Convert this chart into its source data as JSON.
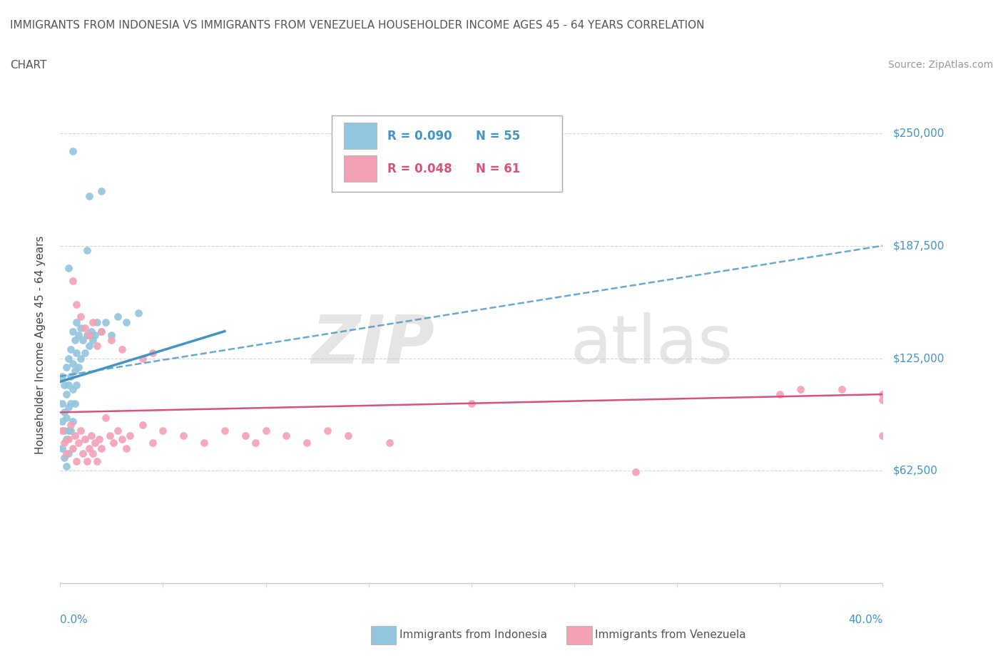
{
  "title_line1": "IMMIGRANTS FROM INDONESIA VS IMMIGRANTS FROM VENEZUELA HOUSEHOLDER INCOME AGES 45 - 64 YEARS CORRELATION",
  "title_line2": "CHART",
  "source": "Source: ZipAtlas.com",
  "ylabel": "Householder Income Ages 45 - 64 years",
  "xlim": [
    0.0,
    0.4
  ],
  "ylim": [
    0,
    265000
  ],
  "ytick_vals": [
    62500,
    125000,
    187500,
    250000
  ],
  "ytick_labels": [
    "$62,500",
    "$125,000",
    "$187,500",
    "$250,000"
  ],
  "color_indonesia": "#92c5de",
  "color_venezuela": "#f4a0b5",
  "color_indonesia_line": "#4393c3",
  "color_venezuela_line": "#d6537a",
  "color_axis_labels": "#4393c3",
  "indo_r": "R = 0.090",
  "indo_n": "N = 55",
  "vene_r": "R = 0.048",
  "vene_n": "N = 61",
  "indonesia_x": [
    0.001,
    0.001,
    0.001,
    0.001,
    0.002,
    0.002,
    0.002,
    0.002,
    0.003,
    0.003,
    0.003,
    0.003,
    0.003,
    0.004,
    0.004,
    0.004,
    0.004,
    0.004,
    0.005,
    0.005,
    0.005,
    0.005,
    0.006,
    0.006,
    0.006,
    0.006,
    0.007,
    0.007,
    0.007,
    0.008,
    0.008,
    0.008,
    0.009,
    0.009,
    0.01,
    0.01,
    0.011,
    0.012,
    0.013,
    0.014,
    0.015,
    0.016,
    0.017,
    0.018,
    0.02,
    0.022,
    0.025,
    0.028,
    0.032,
    0.038,
    0.02,
    0.014,
    0.006,
    0.013,
    0.004
  ],
  "indonesia_y": [
    115000,
    100000,
    90000,
    75000,
    110000,
    95000,
    85000,
    70000,
    120000,
    105000,
    92000,
    80000,
    65000,
    125000,
    110000,
    98000,
    85000,
    72000,
    130000,
    115000,
    100000,
    85000,
    140000,
    122000,
    108000,
    90000,
    135000,
    118000,
    100000,
    145000,
    128000,
    110000,
    138000,
    120000,
    142000,
    125000,
    135000,
    128000,
    138000,
    132000,
    140000,
    135000,
    138000,
    145000,
    140000,
    145000,
    138000,
    148000,
    145000,
    150000,
    218000,
    215000,
    240000,
    185000,
    175000
  ],
  "venezuela_x": [
    0.001,
    0.002,
    0.003,
    0.004,
    0.005,
    0.006,
    0.007,
    0.008,
    0.009,
    0.01,
    0.011,
    0.012,
    0.013,
    0.014,
    0.015,
    0.016,
    0.017,
    0.018,
    0.019,
    0.02,
    0.022,
    0.024,
    0.026,
    0.028,
    0.03,
    0.032,
    0.034,
    0.04,
    0.045,
    0.05,
    0.06,
    0.07,
    0.08,
    0.09,
    0.095,
    0.1,
    0.11,
    0.12,
    0.13,
    0.14,
    0.16,
    0.006,
    0.008,
    0.01,
    0.012,
    0.014,
    0.016,
    0.018,
    0.02,
    0.025,
    0.03,
    0.04,
    0.045,
    0.2,
    0.35,
    0.38,
    0.4,
    0.36,
    0.28,
    0.53,
    0.48
  ],
  "venezuela_y": [
    85000,
    78000,
    72000,
    80000,
    88000,
    75000,
    82000,
    68000,
    78000,
    85000,
    72000,
    80000,
    68000,
    75000,
    82000,
    72000,
    78000,
    68000,
    80000,
    75000,
    92000,
    82000,
    78000,
    85000,
    80000,
    75000,
    82000,
    88000,
    78000,
    85000,
    82000,
    78000,
    85000,
    82000,
    78000,
    85000,
    82000,
    78000,
    85000,
    82000,
    78000,
    168000,
    155000,
    148000,
    142000,
    138000,
    145000,
    132000,
    140000,
    135000,
    130000,
    125000,
    128000,
    100000,
    105000,
    108000,
    105000,
    108000,
    62000,
    102000,
    82000
  ]
}
